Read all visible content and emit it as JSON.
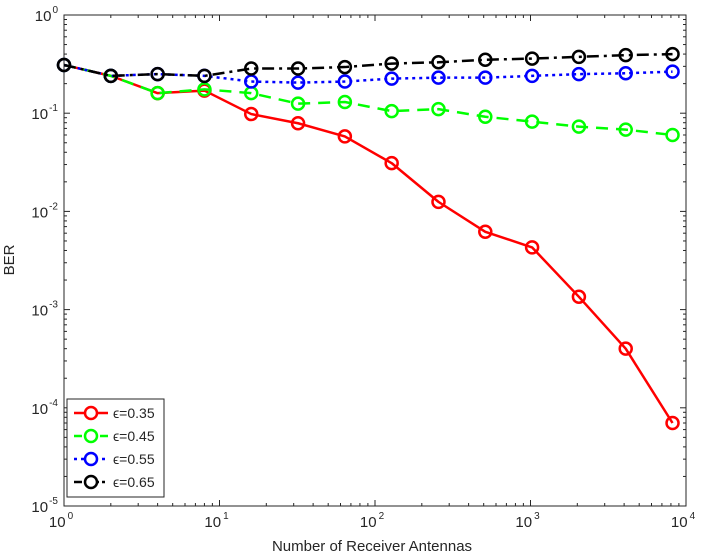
{
  "chart_data": {
    "type": "line",
    "xscale": "log",
    "yscale": "log",
    "xlim": [
      1,
      10000
    ],
    "ylim": [
      1e-05,
      1
    ],
    "xlabel": "Number of Receiver Antennas",
    "ylabel": "BER",
    "x_ticks": [
      {
        "base": "10",
        "exp": "0",
        "value": 1
      },
      {
        "base": "10",
        "exp": "1",
        "value": 10
      },
      {
        "base": "10",
        "exp": "2",
        "value": 100
      },
      {
        "base": "10",
        "exp": "3",
        "value": 1000
      },
      {
        "base": "10",
        "exp": "4",
        "value": 10000
      }
    ],
    "y_ticks": [
      {
        "base": "10",
        "exp": "0",
        "value": 1
      },
      {
        "base": "10",
        "exp": "-1",
        "value": 0.1
      },
      {
        "base": "10",
        "exp": "-2",
        "value": 0.01
      },
      {
        "base": "10",
        "exp": "-3",
        "value": 0.001
      },
      {
        "base": "10",
        "exp": "-4",
        "value": 0.0001
      },
      {
        "base": "10",
        "exp": "-5",
        "value": 1e-05
      }
    ],
    "grid": false,
    "legend_position": "bottom-left",
    "x": [
      1,
      2,
      4,
      8,
      16,
      32,
      64,
      128,
      256,
      512,
      1024,
      2048,
      4096,
      8192
    ],
    "series": [
      {
        "name": "ϵ=0.35",
        "color": "#ff0000",
        "line_style": "solid",
        "marker": "circle",
        "values": [
          0.31,
          0.24,
          0.16,
          0.17,
          0.098,
          0.079,
          0.058,
          0.031,
          0.0125,
          0.0062,
          0.0043,
          0.00135,
          0.0004,
          7e-05
        ]
      },
      {
        "name": "ϵ=0.45",
        "color": "#00ff00",
        "line_style": "dashed",
        "marker": "circle",
        "values": [
          0.31,
          0.24,
          0.16,
          0.175,
          0.16,
          0.125,
          0.13,
          0.105,
          0.11,
          0.092,
          0.082,
          0.073,
          0.068,
          0.06
        ]
      },
      {
        "name": "ϵ=0.55",
        "color": "#0000ff",
        "line_style": "dotted",
        "marker": "circle",
        "values": [
          0.31,
          0.24,
          0.25,
          0.24,
          0.21,
          0.205,
          0.21,
          0.225,
          0.23,
          0.23,
          0.24,
          0.25,
          0.255,
          0.265
        ]
      },
      {
        "name": "ϵ=0.65",
        "color": "#000000",
        "line_style": "dash-dot",
        "marker": "circle",
        "values": [
          0.31,
          0.24,
          0.25,
          0.24,
          0.285,
          0.285,
          0.295,
          0.32,
          0.33,
          0.35,
          0.36,
          0.375,
          0.39,
          0.4
        ]
      }
    ]
  }
}
